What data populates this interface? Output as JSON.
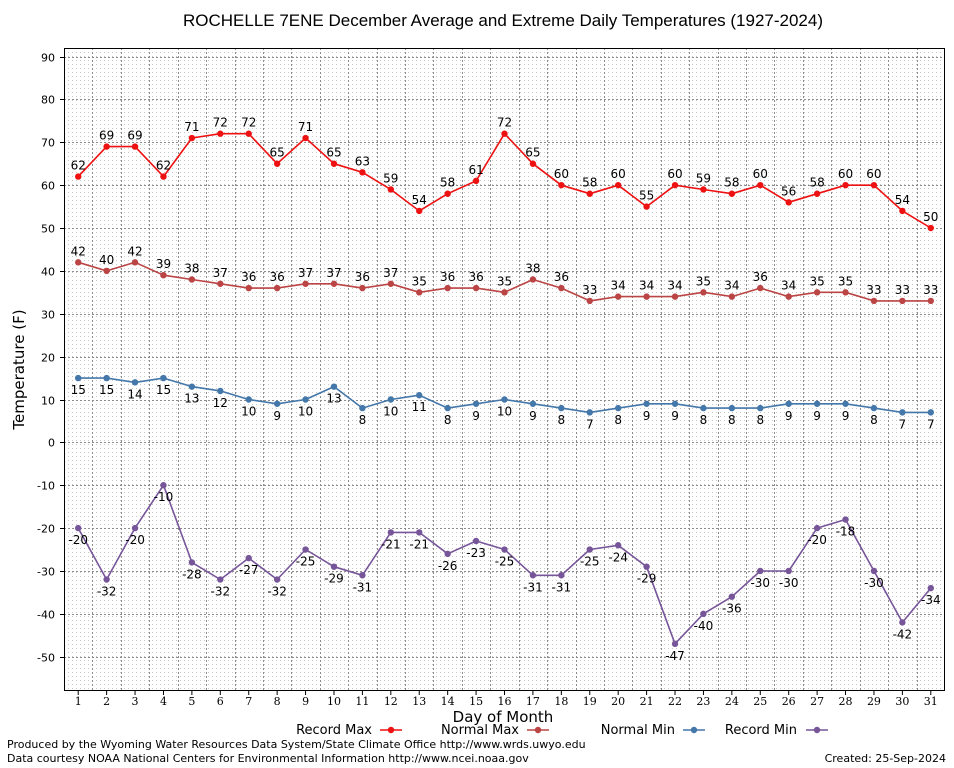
{
  "chart_data": {
    "type": "line",
    "title": "ROCHELLE 7ENE December Average and Extreme Daily Temperatures (1927-2024)",
    "xlabel": "Day of Month",
    "ylabel": "Temperature (F)",
    "ylim": [
      -58,
      92
    ],
    "yticks": [
      -50,
      -40,
      -30,
      -20,
      -10,
      0,
      10,
      20,
      30,
      40,
      50,
      60,
      70,
      80,
      90
    ],
    "grid": true,
    "legend_placement": "bottom",
    "x": [
      1,
      2,
      3,
      4,
      5,
      6,
      7,
      8,
      9,
      10,
      11,
      12,
      13,
      14,
      15,
      16,
      17,
      18,
      19,
      20,
      21,
      22,
      23,
      24,
      25,
      26,
      27,
      28,
      29,
      30,
      31
    ],
    "series": [
      {
        "name": "Record Max",
        "color": "#ee1111",
        "values": [
          62,
          69,
          69,
          62,
          71,
          72,
          72,
          65,
          71,
          65,
          63,
          59,
          54,
          58,
          61,
          72,
          65,
          60,
          58,
          60,
          55,
          60,
          59,
          58,
          60,
          56,
          58,
          60,
          60,
          54,
          50
        ]
      },
      {
        "name": "Normal Max",
        "color": "#bb4444",
        "values": [
          42,
          40,
          42,
          39,
          38,
          37,
          36,
          36,
          37,
          37,
          36,
          37,
          35,
          36,
          36,
          35,
          38,
          36,
          33,
          34,
          34,
          34,
          35,
          34,
          36,
          34,
          35,
          35,
          33,
          33,
          33
        ]
      },
      {
        "name": "Normal Min",
        "color": "#4477aa",
        "values": [
          15,
          15,
          14,
          15,
          13,
          12,
          10,
          9,
          10,
          13,
          8,
          10,
          11,
          8,
          9,
          10,
          9,
          8,
          7,
          8,
          9,
          9,
          8,
          8,
          8,
          9,
          9,
          9,
          8,
          7,
          7
        ]
      },
      {
        "name": "Record Min",
        "color": "#775599",
        "values": [
          -20,
          -32,
          -20,
          -10,
          -28,
          -32,
          -27,
          -32,
          -25,
          -29,
          -31,
          -21,
          -21,
          -26,
          -23,
          -25,
          -31,
          -31,
          -25,
          -24,
          -29,
          -47,
          -40,
          -36,
          -30,
          -30,
          -20,
          -18,
          -30,
          -42,
          -34
        ]
      }
    ]
  },
  "footer": {
    "produced_by": "Produced by the Wyoming Water Resources Data System/State Climate Office http://www.wrds.uwyo.edu",
    "courtesy": "Data courtesy NOAA National Centers for Environmental Information http://www.ncei.noaa.gov",
    "created": "Created:  25-Sep-2024"
  }
}
